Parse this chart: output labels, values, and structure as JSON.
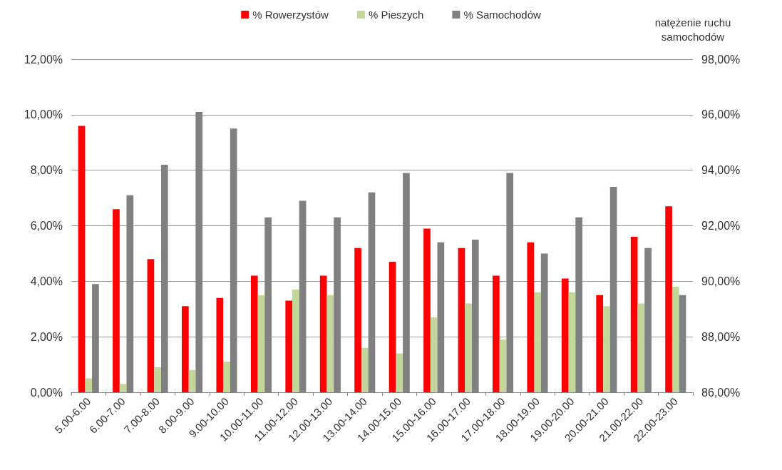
{
  "chart_data": {
    "type": "bar",
    "y2label": "natężenie ruchu\nsamochodów",
    "categories": [
      "5.00-6.00",
      "6.00-7.00",
      "7.00-8.00",
      "8.00-9.00",
      "9.00-10.00",
      "10.00-11.00",
      "11.00-12.00",
      "12.00-13.00",
      "13.00-14.00",
      "14.00-15.00",
      "15.00-16.00",
      "16.00-17.00",
      "17.00-18.00",
      "18.00-19.00",
      "19.00-20.00",
      "20.00-21.00",
      "21.00-22.00",
      "22.00-23.00"
    ],
    "series": [
      {
        "name": "% Rowerzystów",
        "color": "#ff0000",
        "values": [
          9.6,
          6.6,
          4.8,
          3.1,
          3.4,
          4.2,
          3.3,
          4.2,
          5.2,
          4.7,
          5.9,
          5.2,
          4.2,
          5.4,
          4.1,
          3.5,
          5.6,
          6.7
        ]
      },
      {
        "name": "% Pieszych",
        "color": "#c4d79b",
        "values": [
          0.5,
          0.3,
          0.9,
          0.8,
          1.1,
          3.5,
          3.7,
          3.5,
          1.6,
          1.4,
          2.7,
          3.2,
          1.9,
          3.6,
          3.6,
          3.1,
          3.2,
          3.8
        ]
      },
      {
        "name": "% Samochodów",
        "color": "#808080",
        "axis": "y2",
        "values": [
          89.9,
          93.1,
          94.2,
          96.1,
          95.5,
          92.3,
          92.9,
          92.3,
          93.2,
          93.9,
          91.4,
          91.5,
          93.9,
          91.0,
          92.3,
          93.4,
          91.2,
          89.5
        ]
      }
    ],
    "ylim": [
      0,
      12
    ],
    "yticks": [
      {
        "value": 0,
        "label": "0,00%"
      },
      {
        "value": 2,
        "label": "2,00%"
      },
      {
        "value": 4,
        "label": "4,00%"
      },
      {
        "value": 6,
        "label": "6,00%"
      },
      {
        "value": 8,
        "label": "8,00%"
      },
      {
        "value": 10,
        "label": "10,00%"
      },
      {
        "value": 12,
        "label": "12,00%"
      }
    ],
    "y2lim": [
      86,
      98
    ],
    "y2ticks": [
      {
        "value": 86,
        "label": "86,00%"
      },
      {
        "value": 88,
        "label": "88,00%"
      },
      {
        "value": 90,
        "label": "90,00%"
      },
      {
        "value": 92,
        "label": "92,00%"
      },
      {
        "value": 94,
        "label": "94,00%"
      },
      {
        "value": 96,
        "label": "96,00%"
      },
      {
        "value": 98,
        "label": "98,00%"
      }
    ],
    "grid": "y",
    "legend": "top"
  }
}
